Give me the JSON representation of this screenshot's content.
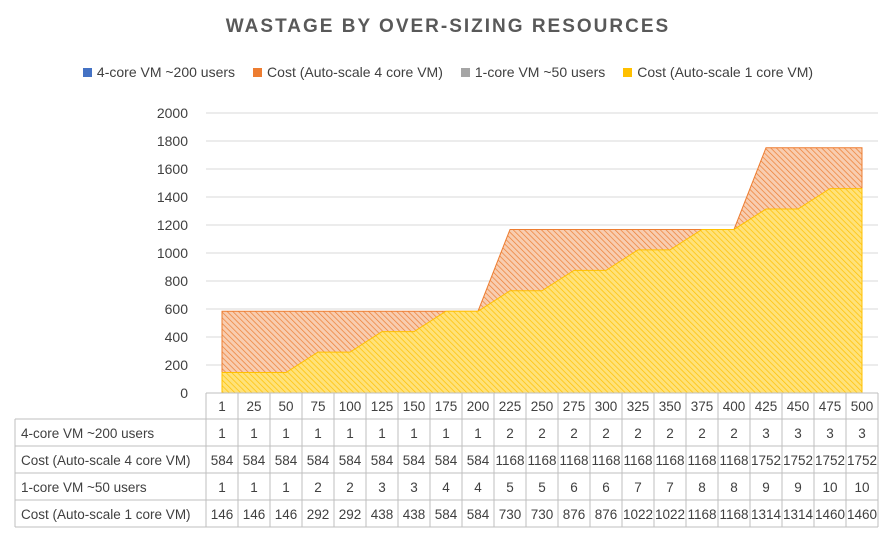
{
  "chart_data": {
    "type": "area",
    "title": "WASTAGE BY OVER-SIZING RESOURCES",
    "categories": [
      "1",
      "25",
      "50",
      "75",
      "100",
      "125",
      "150",
      "175",
      "200",
      "225",
      "250",
      "275",
      "300",
      "325",
      "350",
      "375",
      "400",
      "425",
      "450",
      "475",
      "500"
    ],
    "series": [
      {
        "name": "4-core VM ~200 users",
        "color": "#4472c4",
        "values": [
          1,
          1,
          1,
          1,
          1,
          1,
          1,
          1,
          1,
          2,
          2,
          2,
          2,
          2,
          2,
          2,
          2,
          3,
          3,
          3,
          3
        ]
      },
      {
        "name": "Cost (Auto-scale 4 core VM)",
        "color": "#ed7d31",
        "values": [
          584,
          584,
          584,
          584,
          584,
          584,
          584,
          584,
          584,
          1168,
          1168,
          1168,
          1168,
          1168,
          1168,
          1168,
          1168,
          1752,
          1752,
          1752,
          1752
        ]
      },
      {
        "name": "1-core VM ~50 users",
        "color": "#a5a5a5",
        "values": [
          1,
          1,
          1,
          2,
          2,
          3,
          3,
          4,
          4,
          5,
          5,
          6,
          6,
          7,
          7,
          8,
          8,
          9,
          9,
          10,
          10
        ]
      },
      {
        "name": "Cost (Auto-scale 1 core VM)",
        "color": "#ffc000",
        "values": [
          146,
          146,
          146,
          292,
          292,
          438,
          438,
          584,
          584,
          730,
          730,
          876,
          876,
          1022,
          1022,
          1168,
          1168,
          1314,
          1314,
          1460,
          1460
        ]
      }
    ],
    "y_ticks": [
      "0",
      "200",
      "400",
      "600",
      "800",
      "1000",
      "1200",
      "1400",
      "1600",
      "1800",
      "2000"
    ],
    "ylim": [
      0,
      2000
    ],
    "grid": true,
    "legend_position": "top",
    "data_table": true
  }
}
